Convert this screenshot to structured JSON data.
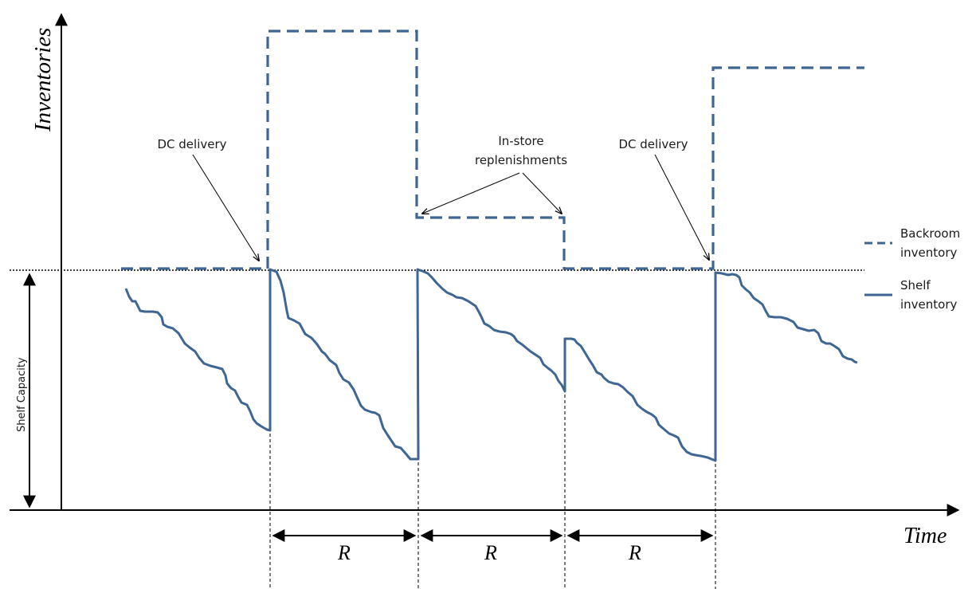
{
  "axes": {
    "y_label": "Inventories",
    "x_label": "Time"
  },
  "shelf_capacity_label": "Shelf Capacity",
  "annotations": {
    "dc_delivery_left": "DC delivery",
    "dc_delivery_right": "DC delivery",
    "in_store_line1": "In-store",
    "in_store_line2": "replenishments"
  },
  "legend": {
    "items": [
      {
        "line1": "Backroom",
        "line2": "inventory",
        "style": "dashed"
      },
      {
        "line1": "Shelf",
        "line2": "inventory",
        "style": "solid"
      }
    ]
  },
  "review_period_label": "R",
  "review_periods": [
    "R",
    "R",
    "R"
  ],
  "colors": {
    "series": "#3f6592",
    "axis": "#000000",
    "text": "#1a1a1a"
  }
}
